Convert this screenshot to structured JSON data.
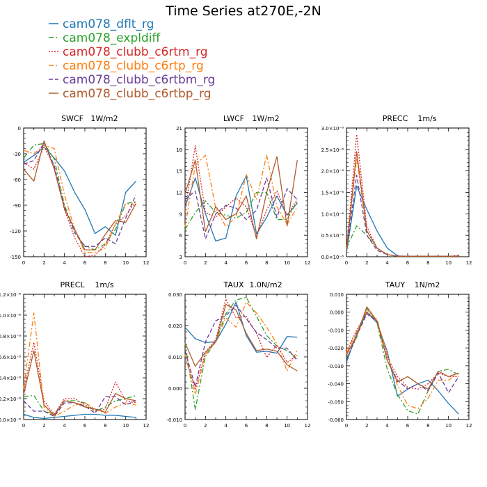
{
  "title": "Time Series at270E,-2N",
  "legend": [
    {
      "name": "cam078_dflt_rg",
      "color": "#1f77b4",
      "dash": "solid"
    },
    {
      "name": "cam078_expldiff",
      "color": "#2ca02c",
      "dash": "dashdot"
    },
    {
      "name": "cam078_clubb_c6rtm_rg",
      "color": "#d62728",
      "dash": "dot"
    },
    {
      "name": "cam078_clubb_c6rtp_rg",
      "color": "#ff7f0e",
      "dash": "dashdot"
    },
    {
      "name": "cam078_clubb_c6rtbm_rg",
      "color": "#6a3d9a",
      "dash": "dash"
    },
    {
      "name": "cam078_clubb_c6rtbp_rg",
      "color": "#b05a2c",
      "dash": "solid"
    }
  ],
  "chart_data": [
    {
      "type": "line",
      "title": "SWCF",
      "units": "1W/m2",
      "x": [
        0,
        1,
        2,
        3,
        4,
        5,
        6,
        7,
        8,
        9,
        10,
        11
      ],
      "xlim": [
        0,
        12
      ],
      "xticks": [
        "0",
        "2",
        "4",
        "6",
        "8",
        "10",
        "12"
      ],
      "ylim": [
        -150,
        0
      ],
      "yticks": [
        "-150",
        "-120",
        "-90",
        "-60",
        "-30",
        "0"
      ],
      "series": [
        {
          "name": "cam078_dflt_rg",
          "values": [
            -40,
            -32,
            -22,
            -35,
            -50,
            -75,
            -95,
            -123,
            -115,
            -125,
            -75,
            -62
          ]
        },
        {
          "name": "cam078_expldiff",
          "values": [
            -35,
            -20,
            -18,
            -36,
            -90,
            -120,
            -138,
            -142,
            -135,
            -118,
            -88,
            -86
          ]
        },
        {
          "name": "cam078_clubb_c6rtm_rg",
          "values": [
            -40,
            -48,
            -22,
            -45,
            -95,
            -128,
            -150,
            -148,
            -136,
            -112,
            -102,
            -85
          ]
        },
        {
          "name": "cam078_clubb_c6rtp_rg",
          "values": [
            -26,
            -30,
            -20,
            -24,
            -78,
            -118,
            -145,
            -145,
            -140,
            -112,
            -88,
            -90
          ]
        },
        {
          "name": "cam078_clubb_c6rtbm_rg",
          "values": [
            -42,
            -38,
            -17,
            -44,
            -92,
            -122,
            -138,
            -138,
            -128,
            -135,
            -105,
            -78
          ]
        },
        {
          "name": "cam078_clubb_c6rtbp_rg",
          "values": [
            -48,
            -62,
            -15,
            -48,
            -94,
            -118,
            -142,
            -142,
            -124,
            -108,
            -110,
            -88
          ]
        }
      ]
    },
    {
      "type": "line",
      "title": "LWCF",
      "units": "1W/m2",
      "x": [
        0,
        1,
        2,
        3,
        4,
        5,
        6,
        7,
        8,
        9,
        10,
        11
      ],
      "xlim": [
        0,
        12
      ],
      "xticks": [
        "0",
        "2",
        "4",
        "6",
        "8",
        "10",
        "12"
      ],
      "ylim": [
        3,
        21
      ],
      "yticks": [
        "3",
        "6",
        "9",
        "12",
        "15",
        "18",
        "21"
      ],
      "series": [
        {
          "name": "cam078_dflt_rg",
          "values": [
            10,
            14,
            9,
            5.2,
            5.6,
            11.5,
            14.3,
            6.2,
            8.5,
            11.5,
            8.8,
            10.5
          ]
        },
        {
          "name": "cam078_expldiff",
          "values": [
            6.8,
            9.2,
            10.8,
            9.2,
            8.8,
            8.4,
            9.2,
            12,
            12,
            8.2,
            8.2,
            10.8
          ]
        },
        {
          "name": "cam078_clubb_c6rtm_rg",
          "values": [
            9.5,
            18.5,
            9.2,
            8.5,
            10,
            11.2,
            10,
            5.8,
            9.5,
            12.2,
            8.8,
            11
          ]
        },
        {
          "name": "cam078_clubb_c6rtp_rg",
          "values": [
            7.2,
            15.8,
            17.2,
            9.8,
            7.2,
            8.6,
            14.5,
            11,
            17.2,
            10,
            7.5,
            10
          ]
        },
        {
          "name": "cam078_clubb_c6rtbm_rg",
          "values": [
            11,
            12.2,
            5.5,
            9,
            10.2,
            9.8,
            8.2,
            9.5,
            14,
            8.5,
            12.5,
            11
          ]
        },
        {
          "name": "cam078_clubb_c6rtbp_rg",
          "values": [
            11.8,
            16.5,
            6.5,
            10,
            8.2,
            9,
            11.5,
            5.5,
            12,
            17,
            7.3,
            16.5
          ]
        }
      ]
    },
    {
      "type": "line",
      "title": "PRECC",
      "units": "1m/s",
      "x": [
        0,
        1,
        2,
        3,
        4,
        5,
        6,
        7,
        8,
        9,
        10,
        11
      ],
      "xlim": [
        0,
        12
      ],
      "xticks": [
        "0",
        "2",
        "4",
        "6",
        "8",
        "10",
        "12"
      ],
      "ylim": [
        0,
        3e-06
      ],
      "yticks": [
        "0.0×10⁻⁶",
        "0.5×10⁻⁶",
        "1.0×10⁻⁶",
        "1.5×10⁻⁶",
        "2.0×10⁻⁶",
        "2.5×10⁻⁶",
        "3.0×10⁻⁶"
      ],
      "series": [
        {
          "name": "cam078_dflt_rg",
          "values": [
            1e-07,
            1.65e-06,
            1.1e-06,
            6e-07,
            2e-07,
            2e-08,
            1e-08,
            1e-08,
            1e-08,
            1e-08,
            1e-08,
            1e-08
          ]
        },
        {
          "name": "cam078_expldiff",
          "values": [
            2e-07,
            7.2e-07,
            5e-07,
            2e-07,
            5e-08,
            1e-08,
            1e-08,
            1e-08,
            1e-08,
            1e-08,
            1e-08,
            1e-08
          ]
        },
        {
          "name": "cam078_clubb_c6rtm_rg",
          "values": [
            1.5e-07,
            2.85e-06,
            7e-07,
            2e-07,
            5e-08,
            1e-08,
            1e-08,
            1e-08,
            1e-08,
            1e-08,
            1e-08,
            3e-08
          ]
        },
        {
          "name": "cam078_clubb_c6rtp_rg",
          "values": [
            1.5e-07,
            2.3e-06,
            6e-07,
            2e-07,
            5e-08,
            1e-08,
            1e-08,
            1e-08,
            1e-08,
            1e-08,
            1e-08,
            1e-08
          ]
        },
        {
          "name": "cam078_clubb_c6rtbm_rg",
          "values": [
            1.2e-07,
            1.9e-06,
            5e-07,
            1.5e-07,
            5e-08,
            1e-08,
            1e-08,
            1e-08,
            1e-08,
            1e-08,
            1e-08,
            1e-08
          ]
        },
        {
          "name": "cam078_clubb_c6rtbp_rg",
          "values": [
            1.5e-07,
            2.45e-06,
            6e-07,
            2e-07,
            5e-08,
            1e-08,
            1e-08,
            1e-08,
            1e-08,
            1e-08,
            1e-08,
            1e-08
          ]
        }
      ]
    },
    {
      "type": "line",
      "title": "PRECL",
      "units": "1m/s",
      "x": [
        0,
        1,
        2,
        3,
        4,
        5,
        6,
        7,
        8,
        9,
        10,
        11
      ],
      "xlim": [
        0,
        12
      ],
      "xticks": [
        "0",
        "2",
        "4",
        "6",
        "8",
        "10",
        "12"
      ],
      "ylim": [
        0,
        1.2e-08
      ],
      "yticks": [
        "0.0×10⁻⁸",
        "0.2×10⁻⁸",
        "0.4×10⁻⁸",
        "0.6×10⁻⁸",
        "0.8×10⁻⁸",
        "1.0×10⁻⁸",
        "1.2×10⁻⁸"
      ],
      "series": [
        {
          "name": "cam078_dflt_rg",
          "values": [
            5e-10,
            2e-10,
            1e-10,
            2e-10,
            3e-10,
            4e-10,
            5e-10,
            5e-10,
            4e-10,
            4e-10,
            3e-10,
            2e-10
          ]
        },
        {
          "name": "cam078_expldiff",
          "values": [
            2.2e-09,
            2.3e-09,
            8e-10,
            5e-10,
            1.8e-09,
            1.8e-09,
            1.6e-09,
            8e-10,
            1.2e-09,
            1.8e-09,
            2e-09,
            2.3e-09
          ]
        },
        {
          "name": "cam078_clubb_c6rtm_rg",
          "values": [
            2.8e-09,
            7.4e-09,
            1.8e-09,
            5e-10,
            2e-09,
            2e-09,
            1.4e-09,
            8e-10,
            1e-09,
            3.6e-09,
            1.8e-09,
            1.6e-09
          ]
        },
        {
          "name": "cam078_clubb_c6rtp_rg",
          "values": [
            3e-09,
            1.02e-08,
            1.2e-09,
            3e-10,
            8e-10,
            1.4e-09,
            1.6e-09,
            1e-09,
            6e-10,
            1.2e-09,
            1.6e-09,
            1.4e-09
          ]
        },
        {
          "name": "cam078_clubb_c6rtbm_rg",
          "values": [
            1.8e-09,
            8e-10,
            8e-10,
            3e-10,
            1.6e-09,
            1.6e-09,
            1.3e-09,
            6e-10,
            2.2e-09,
            2.2e-09,
            1.4e-09,
            1.8e-09
          ]
        },
        {
          "name": "cam078_clubb_c6rtbp_rg",
          "values": [
            2.4e-09,
            6.6e-09,
            1.4e-09,
            4e-10,
            1.8e-09,
            1.6e-09,
            1.2e-09,
            1e-09,
            7e-10,
            2.5e-09,
            2e-09,
            1.8e-09
          ]
        }
      ]
    },
    {
      "type": "line",
      "title": "TAUX",
      "units": "1.0N/m2",
      "x": [
        0,
        1,
        2,
        3,
        4,
        5,
        6,
        7,
        8,
        9,
        10,
        11
      ],
      "xlim": [
        0,
        12
      ],
      "xticks": [
        "0",
        "2",
        "4",
        "6",
        "8",
        "10",
        "12"
      ],
      "ylim": [
        -0.01,
        0.03
      ],
      "yticks": [
        "-0.010",
        "0.000",
        "0.010",
        "0.020",
        "0.030"
      ],
      "series": [
        {
          "name": "cam078_dflt_rg",
          "values": [
            0.0195,
            0.0158,
            0.0146,
            0.0148,
            0.0205,
            0.0275,
            0.0168,
            0.0115,
            0.0118,
            0.0112,
            0.0165,
            0.0163
          ]
        },
        {
          "name": "cam078_expldiff",
          "values": [
            0.0145,
            -0.0068,
            0.0102,
            0.0148,
            0.0238,
            0.0282,
            0.029,
            0.023,
            0.0168,
            0.0135,
            0.012,
            0.0095
          ]
        },
        {
          "name": "cam078_clubb_c6rtm_rg",
          "values": [
            0.0105,
            -0.0005,
            0.0115,
            0.0155,
            0.0285,
            0.0225,
            0.023,
            0.0175,
            0.0098,
            0.0138,
            0.0082,
            0.0105
          ]
        },
        {
          "name": "cam078_clubb_c6rtp_rg",
          "values": [
            0.0108,
            -0.002,
            0.0108,
            0.0148,
            0.0225,
            0.0195,
            0.0275,
            0.024,
            0.0195,
            0.0142,
            0.0055,
            0.0122
          ]
        },
        {
          "name": "cam078_clubb_c6rtbm_rg",
          "values": [
            0.012,
            0.0005,
            0.0148,
            0.0215,
            0.0232,
            0.0265,
            0.0222,
            0.0178,
            0.0155,
            0.0128,
            0.0128,
            0.0088
          ]
        },
        {
          "name": "cam078_clubb_c6rtbp_rg",
          "values": [
            0.0145,
            0.007,
            0.0115,
            0.0148,
            0.0268,
            0.025,
            0.0175,
            0.012,
            0.0125,
            0.0118,
            0.0075,
            0.0055
          ]
        }
      ]
    },
    {
      "type": "line",
      "title": "TAUY",
      "units": "1N/m2",
      "x": [
        0,
        1,
        2,
        3,
        4,
        5,
        6,
        7,
        8,
        9,
        10,
        11
      ],
      "xlim": [
        0,
        12
      ],
      "xticks": [
        "0",
        "2",
        "4",
        "6",
        "8",
        "10",
        "12"
      ],
      "ylim": [
        -0.06,
        0.01
      ],
      "yticks": [
        "-0.060",
        "-0.050",
        "-0.040",
        "-0.030",
        "-0.020",
        "-0.010",
        "0.000",
        "0.010"
      ],
      "series": [
        {
          "name": "cam078_dflt_rg",
          "values": [
            -0.028,
            -0.012,
            0.0,
            -0.006,
            -0.022,
            -0.047,
            -0.043,
            -0.04,
            -0.038,
            -0.044,
            -0.051,
            -0.057
          ]
        },
        {
          "name": "cam078_expldiff",
          "values": [
            -0.026,
            -0.014,
            0.002,
            -0.006,
            -0.032,
            -0.046,
            -0.055,
            -0.057,
            -0.044,
            -0.033,
            -0.032,
            -0.035
          ]
        },
        {
          "name": "cam078_clubb_c6rtm_rg",
          "values": [
            -0.022,
            -0.01,
            0.0,
            -0.005,
            -0.025,
            -0.036,
            -0.042,
            -0.043,
            -0.04,
            -0.034,
            -0.036,
            -0.036
          ]
        },
        {
          "name": "cam078_clubb_c6rtp_rg",
          "values": [
            -0.023,
            -0.011,
            0.001,
            -0.004,
            -0.024,
            -0.041,
            -0.052,
            -0.054,
            -0.048,
            -0.038,
            -0.038,
            -0.034
          ]
        },
        {
          "name": "cam078_clubb_c6rtbm_rg",
          "values": [
            -0.027,
            -0.013,
            -0.001,
            -0.005,
            -0.027,
            -0.038,
            -0.043,
            -0.04,
            -0.044,
            -0.034,
            -0.045,
            -0.036
          ]
        },
        {
          "name": "cam078_clubb_c6rtbp_rg",
          "values": [
            -0.024,
            -0.013,
            0.003,
            -0.005,
            -0.027,
            -0.039,
            -0.036,
            -0.04,
            -0.043,
            -0.033,
            -0.036,
            -0.034
          ]
        }
      ]
    }
  ]
}
